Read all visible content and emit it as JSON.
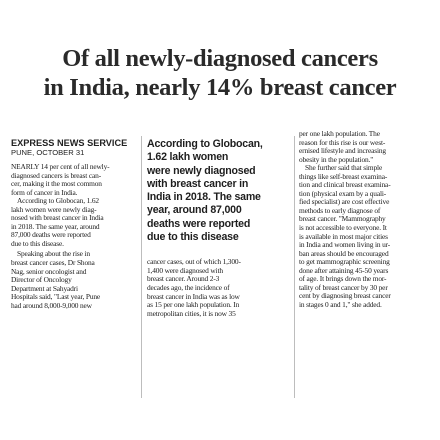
{
  "headline": [
    "Of all newly-diagnosed cancers",
    "in India, nearly 14% breast cancer"
  ],
  "byline": "EXPRESS NEWS SERVICE",
  "dateline": "PUNE, OCTOBER 31",
  "column1": [
    [
      "NEARLY 14 per cent of all newly-",
      "diagnosed cancers is breast can-",
      "cer, making it the most common",
      "form of cancer in India."
    ],
    [
      "According to Globocan, 1.62",
      "lakh women were newly diag-",
      "nosed with breast cancer in India",
      "in 2018. The same year, around",
      "87,000 deaths were reported",
      "due to this disease."
    ],
    [
      "Speaking about the rise in",
      "breast cancer cases, Dr Shona",
      "Nag, senior oncologist and",
      "Director of Oncology",
      "Department at Sahyadri",
      "Hospitals said, \"Last year, Pune",
      "had around 8,000-9,000 new"
    ]
  ],
  "pullquote": [
    "According to Globocan,",
    "1.62 lakh women",
    "were newly diagnosed",
    "with breast cancer in",
    "India in 2018. The same",
    "year, around 87,000",
    "deaths were reported",
    "due to this disease"
  ],
  "column2": [
    "cancer cases, out of which 1,300-",
    "1,400 were diagnosed with",
    "breast cancer. Around 2-3",
    "decades ago, the incidence of",
    "breast cancer in India was as low",
    "as 15 per one lakh population. In",
    "metropolitan cities, it is now 35"
  ],
  "column3": [
    [
      "per one lakh population. The",
      "reason for this rise is our west-",
      "ernised lifestyle and increasing",
      "obesity in the population.\""
    ],
    [
      "She further said that simple",
      "things like self-breast examina-",
      "tion and clinical breast examina-",
      "tion (physical exam by a quali-",
      "fied specialist) are cost effective",
      "methods to early diagnose of",
      "breast cancer. \"Mammography",
      "is not accessible to everyone. It",
      "is available in most major cities",
      "in India and women living in ur-",
      "ban areas should be encouraged",
      "to get mammographic screening",
      "done after attaining 45-50 years",
      "of age. It brings down the mor-",
      "tality of breast cancer by 30 per",
      "cent by diagnosing breast cancer",
      "in stages 0 and 1,\" she added."
    ]
  ]
}
